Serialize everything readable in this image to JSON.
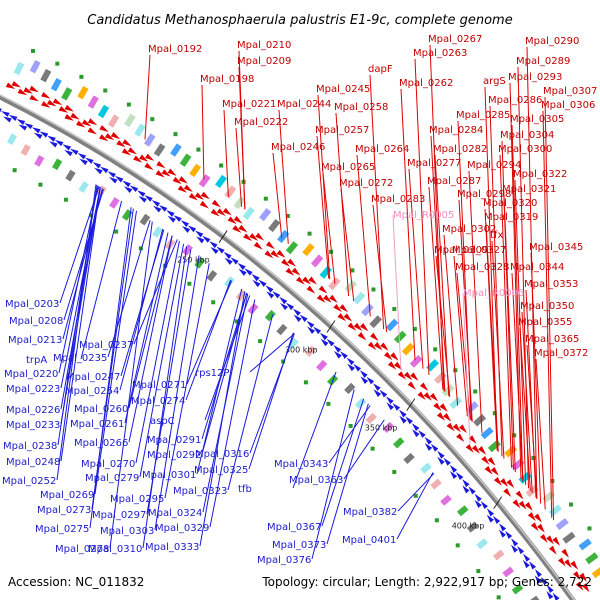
{
  "title": "Candidatus Methanosphaerula palustris E1-9c, complete genome",
  "footer": {
    "accession": "Accession: NC_011832",
    "summary": "Topology: circular; Length: 2,922,917 bp; Genes: 2,722"
  },
  "ticks": [
    "250 kbp",
    "300 kbp",
    "350 kbp",
    "400 kbp"
  ],
  "colors": {
    "forward": "#e00000",
    "reverse": "#1a1add",
    "rna": "#f0a0c8",
    "backbone": "#999999"
  },
  "labels_forward": [
    "Mpal_0192",
    "Mpal_0210",
    "Mpal_0209",
    "Mpal_0198",
    "Mpal_0221",
    "Mpal_0222",
    "Mpal_0244",
    "Mpal_0245",
    "Mpal_0246",
    "Mpal_0257",
    "Mpal_0258",
    "Mpal_0262",
    "Mpal_0263",
    "Mpal_0264",
    "Mpal_0265",
    "Mpal_0267",
    "Mpal_0272",
    "Mpal_0277",
    "Mpal_0282",
    "Mpal_0283",
    "Mpal_0284",
    "Mpal_0285",
    "Mpal_0286",
    "Mpal_0287",
    "Mpal_0289",
    "Mpal_0290",
    "Mpal_0293",
    "Mpal_0294",
    "Mpal_0298",
    "Mpal_0300",
    "Mpal_0302",
    "Mpal_0304",
    "Mpal_0305",
    "Mpal_0306",
    "Mpal_0307",
    "Mpal_0309",
    "Mpal_0319",
    "Mpal_0320",
    "Mpal_0321",
    "Mpal_0322",
    "Mpal_0327",
    "Mpal_0328",
    "Mpal_0344",
    "Mpal_0345",
    "Mpal_0350",
    "Mpal_0353",
    "Mpal_0355",
    "Mpal_0365",
    "Mpal_0372",
    "dapF",
    "argS",
    "tfx"
  ],
  "labels_reverse": [
    "Mpal_0203",
    "Mpal_0208",
    "Mpal_0213",
    "Mpal_0220",
    "Mpal_0223",
    "Mpal_0226",
    "Mpal_0233",
    "Mpal_0235",
    "Mpal_0237",
    "Mpal_0238",
    "Mpal_0247",
    "Mpal_0248",
    "Mpal_0252",
    "Mpal_0254",
    "Mpal_0260",
    "Mpal_0261",
    "Mpal_0266",
    "Mpal_0269",
    "Mpal_0270",
    "Mpal_0271",
    "Mpal_0273",
    "Mpal_0274",
    "Mpal_0275",
    "Mpal_0278",
    "Mpal_0279",
    "Mpal_0291",
    "Mpal_0292",
    "Mpal_0295",
    "Mpal_0297",
    "Mpal_0301",
    "Mpal_0303",
    "Mpal_0310",
    "Mpal_0316",
    "Mpal_0323",
    "Mpal_0324",
    "Mpal_0325",
    "Mpal_0329",
    "Mpal_0333",
    "Mpal_0343",
    "Mpal_0363",
    "Mpal_0367",
    "Mpal_0373",
    "Mpal_0376",
    "Mpal_0382",
    "Mpal_0401",
    "trpA",
    "rps12P",
    "aspC",
    "tfb"
  ],
  "labels_rna": [
    "Mpal_R0005",
    "Mpal_R0006"
  ]
}
